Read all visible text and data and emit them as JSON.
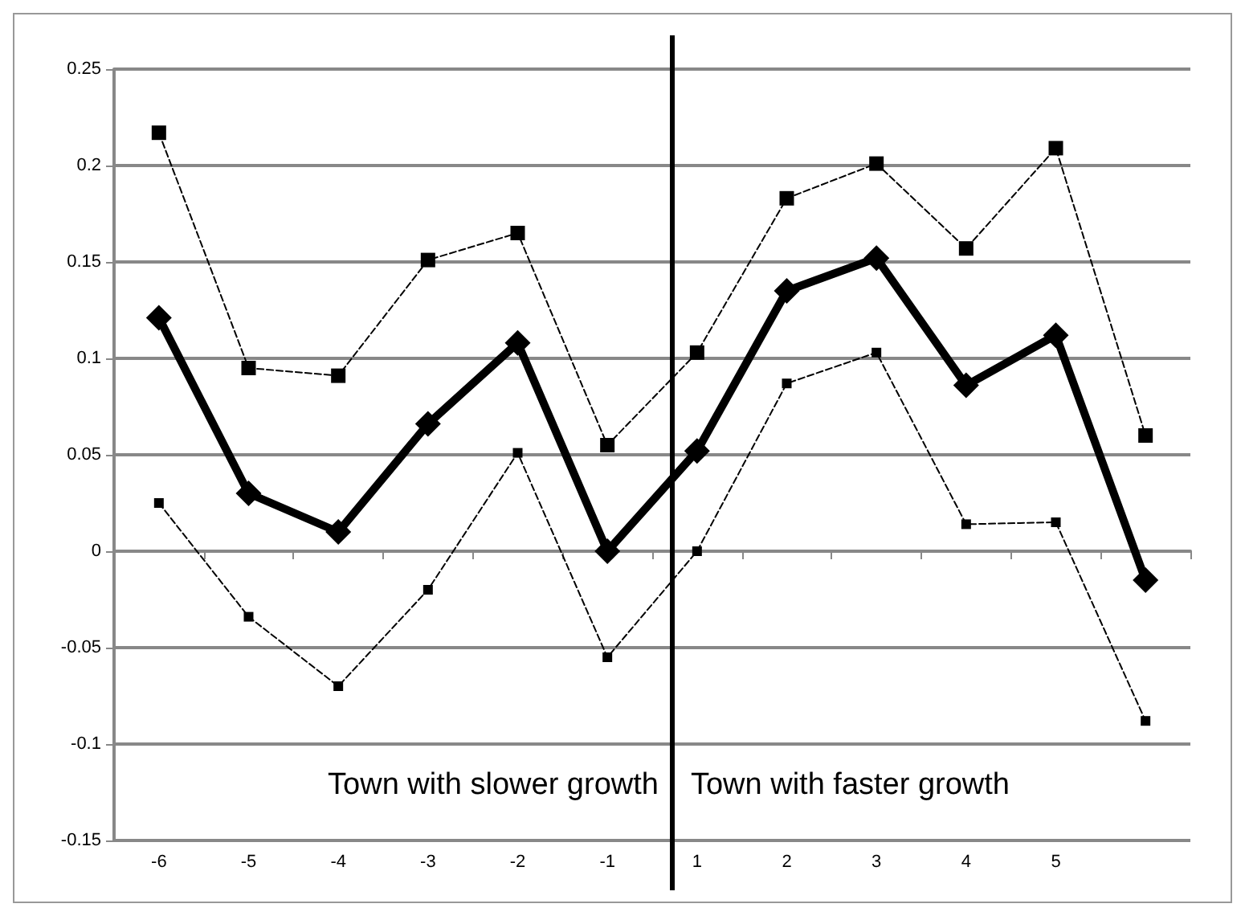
{
  "chart_data": {
    "type": "line",
    "categories": [
      "-6",
      "-5",
      "-4",
      "-3",
      "-2",
      "-1",
      "1",
      "2",
      "3",
      "4",
      "5",
      null
    ],
    "series": [
      {
        "color": "#000000",
        "marker": "diamond",
        "line_style": "solid",
        "values": [
          0.121,
          0.03,
          0.01,
          0.066,
          0.108,
          0.0,
          0.052,
          0.135,
          0.152,
          0.086,
          0.112,
          -0.015
        ]
      },
      {
        "color": "#000000",
        "marker": "square",
        "line_style": "dashed",
        "values": [
          0.217,
          0.095,
          0.091,
          0.151,
          0.165,
          0.055,
          0.103,
          0.183,
          0.201,
          0.157,
          0.209,
          0.06
        ]
      },
      {
        "color": "#000000",
        "marker": "square",
        "line_style": "dashed",
        "values": [
          0.025,
          -0.034,
          -0.07,
          -0.02,
          0.051,
          -0.055,
          0.0,
          0.087,
          0.103,
          0.014,
          0.015,
          -0.088
        ]
      }
    ],
    "ylim": [
      -0.15,
      0.25
    ],
    "yticks": [
      -0.15,
      -0.1,
      -0.05,
      0,
      0.05,
      0.1,
      0.15,
      0.2,
      0.25
    ],
    "grid": "y",
    "annotations": [
      "Town with slower growth",
      "Town with faster growth"
    ]
  }
}
